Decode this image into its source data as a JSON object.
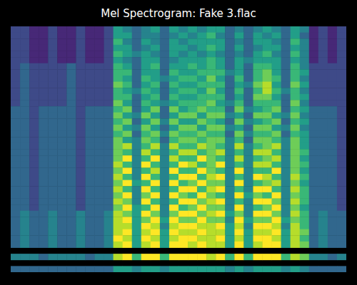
{
  "chart_data": {
    "type": "heatmap",
    "title": "Mel Spectrogram: Fake 3.flac",
    "tick_labels": false,
    "zlim": [
      0,
      9
    ],
    "values": [
      [
        2,
        2,
        1,
        1,
        2,
        1,
        1,
        2,
        1,
        1,
        2,
        5,
        4,
        3,
        4,
        5,
        3,
        5,
        4,
        5,
        4,
        5,
        5,
        3,
        4,
        3,
        4,
        5,
        4,
        3,
        5,
        4,
        1,
        2,
        1,
        2
      ],
      [
        2,
        2,
        1,
        1,
        2,
        1,
        1,
        2,
        1,
        1,
        2,
        5,
        5,
        3,
        4,
        4,
        3,
        4,
        5,
        4,
        5,
        6,
        4,
        3,
        5,
        3,
        5,
        4,
        5,
        3,
        5,
        3,
        1,
        2,
        1,
        2
      ],
      [
        2,
        2,
        1,
        1,
        2,
        1,
        1,
        2,
        1,
        1,
        2,
        6,
        4,
        3,
        5,
        4,
        3,
        5,
        4,
        5,
        5,
        5,
        5,
        3,
        4,
        3,
        5,
        5,
        4,
        3,
        6,
        4,
        1,
        2,
        1,
        2
      ],
      [
        2,
        2,
        1,
        1,
        2,
        1,
        1,
        2,
        1,
        1,
        2,
        5,
        5,
        3,
        4,
        5,
        3,
        5,
        5,
        4,
        5,
        6,
        5,
        3,
        5,
        3,
        4,
        5,
        5,
        3,
        5,
        4,
        1,
        2,
        1,
        2
      ],
      [
        2,
        2,
        1,
        1,
        2,
        1,
        1,
        2,
        1,
        1,
        2,
        6,
        5,
        4,
        5,
        4,
        3,
        5,
        4,
        5,
        4,
        5,
        4,
        3,
        4,
        3,
        5,
        6,
        4,
        3,
        6,
        4,
        1,
        2,
        1,
        2
      ],
      [
        2,
        2,
        1,
        1,
        2,
        1,
        1,
        2,
        1,
        1,
        2,
        5,
        4,
        3,
        5,
        5,
        3,
        4,
        5,
        5,
        5,
        6,
        5,
        3,
        5,
        4,
        5,
        5,
        5,
        3,
        5,
        4,
        1,
        2,
        1,
        2
      ],
      [
        2,
        3,
        2,
        2,
        2,
        2,
        3,
        2,
        2,
        2,
        2,
        6,
        5,
        3,
        5,
        6,
        3,
        5,
        5,
        6,
        5,
        6,
        5,
        3,
        5,
        3,
        6,
        6,
        5,
        3,
        6,
        4,
        2,
        2,
        2,
        2
      ],
      [
        2,
        3,
        2,
        2,
        2,
        2,
        3,
        2,
        2,
        2,
        2,
        6,
        6,
        3,
        5,
        5,
        3,
        6,
        5,
        5,
        6,
        6,
        6,
        4,
        5,
        3,
        6,
        7,
        5,
        3,
        6,
        5,
        2,
        2,
        2,
        2
      ],
      [
        2,
        3,
        2,
        2,
        2,
        2,
        3,
        2,
        2,
        2,
        2,
        6,
        5,
        3,
        6,
        5,
        4,
        5,
        6,
        6,
        5,
        7,
        5,
        3,
        6,
        3,
        6,
        7,
        6,
        3,
        6,
        4,
        2,
        2,
        2,
        2
      ],
      [
        2,
        3,
        2,
        2,
        2,
        2,
        3,
        2,
        2,
        2,
        2,
        7,
        6,
        3,
        5,
        6,
        3,
        6,
        5,
        5,
        6,
        6,
        6,
        3,
        5,
        4,
        7,
        8,
        5,
        3,
        7,
        5,
        2,
        2,
        2,
        2
      ],
      [
        2,
        3,
        2,
        2,
        2,
        2,
        3,
        2,
        2,
        2,
        2,
        6,
        5,
        4,
        6,
        5,
        3,
        5,
        6,
        6,
        5,
        7,
        5,
        3,
        6,
        3,
        6,
        8,
        6,
        4,
        6,
        4,
        2,
        2,
        2,
        2
      ],
      [
        2,
        3,
        2,
        2,
        2,
        2,
        3,
        2,
        2,
        2,
        2,
        6,
        6,
        3,
        5,
        6,
        3,
        6,
        5,
        5,
        6,
        6,
        6,
        3,
        5,
        3,
        7,
        7,
        5,
        3,
        6,
        5,
        2,
        2,
        2,
        2
      ],
      [
        2,
        3,
        2,
        2,
        2,
        2,
        3,
        2,
        2,
        2,
        2,
        7,
        5,
        3,
        6,
        5,
        4,
        5,
        6,
        6,
        6,
        7,
        5,
        4,
        6,
        3,
        6,
        6,
        6,
        3,
        7,
        4,
        2,
        2,
        2,
        2
      ],
      [
        3,
        3,
        2,
        3,
        3,
        3,
        3,
        2,
        3,
        3,
        3,
        6,
        7,
        3,
        5,
        7,
        3,
        7,
        5,
        6,
        7,
        6,
        6,
        3,
        7,
        4,
        5,
        6,
        7,
        3,
        6,
        5,
        3,
        3,
        3,
        2
      ],
      [
        3,
        3,
        2,
        3,
        3,
        3,
        3,
        2,
        3,
        3,
        3,
        7,
        5,
        4,
        7,
        5,
        3,
        5,
        7,
        7,
        5,
        7,
        7,
        4,
        5,
        3,
        7,
        7,
        5,
        4,
        7,
        4,
        3,
        3,
        3,
        2
      ],
      [
        3,
        3,
        2,
        3,
        3,
        3,
        3,
        2,
        3,
        3,
        3,
        6,
        7,
        3,
        5,
        7,
        4,
        7,
        5,
        5,
        7,
        6,
        5,
        3,
        7,
        4,
        5,
        6,
        7,
        3,
        6,
        5,
        3,
        3,
        3,
        2
      ],
      [
        3,
        3,
        2,
        3,
        3,
        3,
        3,
        2,
        3,
        3,
        3,
        7,
        5,
        4,
        7,
        5,
        3,
        5,
        7,
        7,
        5,
        7,
        7,
        4,
        5,
        3,
        7,
        7,
        5,
        4,
        7,
        4,
        3,
        3,
        3,
        2
      ],
      [
        3,
        3,
        2,
        3,
        3,
        3,
        3,
        2,
        3,
        3,
        3,
        6,
        7,
        3,
        6,
        7,
        4,
        7,
        6,
        6,
        7,
        6,
        6,
        3,
        7,
        4,
        6,
        6,
        7,
        3,
        6,
        5,
        3,
        3,
        3,
        2
      ],
      [
        3,
        3,
        2,
        3,
        3,
        3,
        3,
        2,
        3,
        3,
        3,
        7,
        5,
        4,
        7,
        6,
        3,
        6,
        7,
        7,
        6,
        7,
        7,
        4,
        6,
        3,
        7,
        7,
        6,
        4,
        7,
        5,
        3,
        3,
        3,
        2
      ],
      [
        3,
        3,
        2,
        3,
        3,
        3,
        3,
        2,
        3,
        3,
        3,
        7,
        8,
        4,
        6,
        8,
        4,
        8,
        6,
        6,
        8,
        7,
        6,
        4,
        8,
        4,
        6,
        7,
        8,
        4,
        7,
        5,
        3,
        3,
        3,
        2
      ],
      [
        3,
        3,
        2,
        3,
        3,
        3,
        3,
        2,
        3,
        3,
        3,
        7,
        6,
        4,
        8,
        6,
        4,
        6,
        8,
        8,
        6,
        7,
        8,
        4,
        6,
        4,
        8,
        8,
        6,
        4,
        7,
        6,
        3,
        3,
        3,
        2
      ],
      [
        3,
        3,
        2,
        3,
        3,
        3,
        3,
        2,
        3,
        3,
        3,
        7,
        9,
        4,
        6,
        9,
        4,
        8,
        6,
        6,
        9,
        7,
        6,
        4,
        8,
        4,
        6,
        7,
        8,
        4,
        7,
        5,
        3,
        3,
        3,
        2
      ],
      [
        3,
        3,
        2,
        3,
        3,
        3,
        3,
        2,
        3,
        3,
        3,
        8,
        6,
        4,
        9,
        6,
        4,
        6,
        9,
        8,
        6,
        7,
        9,
        4,
        6,
        4,
        8,
        8,
        6,
        4,
        7,
        6,
        3,
        3,
        3,
        2
      ],
      [
        3,
        3,
        2,
        3,
        3,
        3,
        3,
        2,
        3,
        3,
        3,
        7,
        9,
        4,
        6,
        8,
        4,
        9,
        6,
        6,
        9,
        7,
        6,
        4,
        9,
        4,
        6,
        6,
        9,
        4,
        7,
        5,
        3,
        3,
        3,
        2
      ],
      [
        3,
        3,
        2,
        3,
        3,
        3,
        3,
        2,
        3,
        3,
        3,
        8,
        6,
        4,
        9,
        6,
        4,
        6,
        9,
        9,
        6,
        8,
        9,
        4,
        6,
        4,
        9,
        8,
        6,
        4,
        8,
        6,
        3,
        3,
        3,
        2
      ],
      [
        3,
        3,
        2,
        3,
        3,
        3,
        3,
        2,
        3,
        3,
        3,
        7,
        9,
        5,
        6,
        9,
        4,
        9,
        6,
        7,
        9,
        7,
        7,
        4,
        9,
        4,
        6,
        7,
        8,
        4,
        7,
        5,
        3,
        3,
        3,
        2
      ],
      [
        3,
        3,
        2,
        3,
        3,
        3,
        3,
        2,
        3,
        3,
        3,
        8,
        6,
        4,
        9,
        6,
        4,
        6,
        9,
        9,
        6,
        8,
        9,
        4,
        6,
        4,
        9,
        9,
        6,
        4,
        8,
        6,
        3,
        3,
        3,
        2
      ],
      [
        3,
        3,
        2,
        3,
        3,
        3,
        3,
        2,
        3,
        3,
        3,
        7,
        9,
        4,
        7,
        9,
        4,
        9,
        7,
        6,
        9,
        7,
        6,
        4,
        9,
        5,
        7,
        6,
        9,
        4,
        7,
        6,
        3,
        3,
        3,
        2
      ],
      [
        3,
        3,
        2,
        3,
        3,
        3,
        3,
        2,
        3,
        3,
        3,
        8,
        7,
        4,
        9,
        6,
        4,
        6,
        9,
        9,
        7,
        8,
        9,
        4,
        6,
        4,
        9,
        9,
        7,
        4,
        8,
        6,
        3,
        3,
        3,
        2
      ],
      [
        3,
        3,
        2,
        3,
        3,
        3,
        3,
        2,
        3,
        3,
        3,
        7,
        9,
        5,
        6,
        9,
        4,
        9,
        6,
        7,
        9,
        7,
        7,
        4,
        9,
        4,
        6,
        7,
        9,
        4,
        7,
        5,
        3,
        3,
        3,
        2
      ],
      [
        3,
        4,
        3,
        3,
        4,
        3,
        3,
        4,
        3,
        3,
        4,
        8,
        7,
        5,
        9,
        7,
        4,
        7,
        9,
        9,
        7,
        8,
        9,
        5,
        7,
        4,
        9,
        9,
        7,
        4,
        8,
        6,
        3,
        4,
        3,
        3
      ],
      [
        3,
        4,
        3,
        3,
        4,
        3,
        3,
        4,
        3,
        3,
        4,
        8,
        9,
        5,
        7,
        9,
        5,
        9,
        7,
        7,
        9,
        7,
        7,
        4,
        9,
        5,
        7,
        7,
        9,
        5,
        7,
        6,
        3,
        4,
        3,
        3
      ],
      [
        3,
        4,
        3,
        3,
        4,
        3,
        3,
        4,
        3,
        3,
        4,
        8,
        8,
        5,
        9,
        8,
        4,
        8,
        9,
        9,
        8,
        8,
        9,
        5,
        8,
        4,
        9,
        9,
        8,
        4,
        8,
        6,
        3,
        4,
        3,
        3
      ],
      [
        3,
        4,
        3,
        3,
        4,
        3,
        3,
        4,
        3,
        3,
        4,
        8,
        9,
        5,
        8,
        9,
        5,
        9,
        8,
        8,
        9,
        8,
        8,
        5,
        9,
        5,
        8,
        8,
        9,
        5,
        8,
        7,
        3,
        4,
        3,
        3
      ],
      [
        3,
        4,
        3,
        3,
        4,
        3,
        3,
        4,
        3,
        3,
        4,
        9,
        8,
        5,
        9,
        8,
        5,
        8,
        9,
        9,
        8,
        8,
        9,
        5,
        8,
        5,
        9,
        9,
        8,
        5,
        8,
        6,
        3,
        4,
        3,
        3
      ],
      [
        3,
        4,
        3,
        3,
        4,
        3,
        3,
        4,
        3,
        3,
        4,
        8,
        9,
        5,
        8,
        9,
        5,
        9,
        9,
        8,
        9,
        8,
        8,
        5,
        9,
        5,
        8,
        9,
        9,
        5,
        8,
        7,
        3,
        4,
        3,
        3
      ],
      [
        null,
        null,
        null,
        null,
        null,
        null,
        null,
        null,
        null,
        null,
        null,
        null,
        null,
        null,
        null,
        null,
        null,
        null,
        null,
        null,
        null,
        null,
        null,
        null,
        null,
        null,
        null,
        null,
        null,
        null,
        null,
        null,
        null,
        null,
        null,
        null
      ],
      [
        4,
        4,
        4,
        3,
        4,
        4,
        4,
        4,
        3,
        4,
        4,
        8,
        9,
        6,
        9,
        9,
        6,
        9,
        9,
        9,
        9,
        8,
        9,
        6,
        9,
        6,
        9,
        9,
        9,
        6,
        8,
        7,
        4,
        4,
        3,
        4
      ],
      [
        null,
        null,
        null,
        null,
        null,
        null,
        null,
        null,
        null,
        null,
        null,
        null,
        null,
        null,
        null,
        null,
        null,
        null,
        null,
        null,
        null,
        null,
        null,
        null,
        null,
        null,
        null,
        null,
        null,
        null,
        null,
        null,
        null,
        null,
        null,
        null
      ],
      [
        3,
        3,
        3,
        3,
        3,
        3,
        3,
        3,
        3,
        3,
        3,
        5,
        5,
        4,
        5,
        5,
        4,
        5,
        5,
        5,
        5,
        5,
        5,
        4,
        5,
        4,
        5,
        5,
        5,
        4,
        5,
        4,
        3,
        3,
        3,
        3
      ]
    ]
  }
}
